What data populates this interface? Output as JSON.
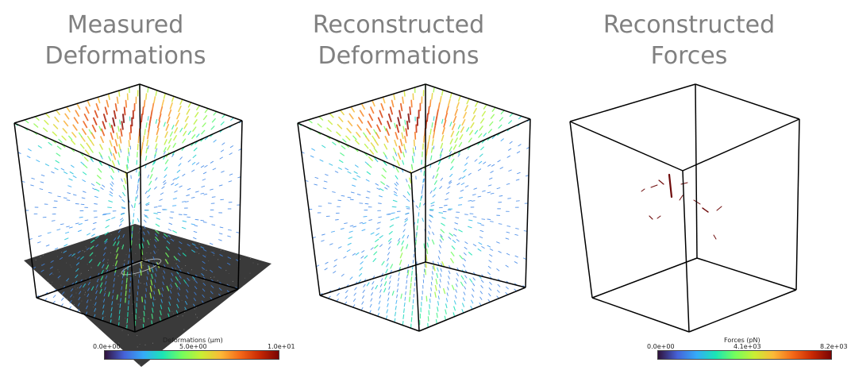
{
  "panels": [
    {
      "title_line1": "Measured",
      "title_line2": "Deformations",
      "kind": "deformation",
      "has_floor": true
    },
    {
      "title_line1": "Reconstructed",
      "title_line2": "Deformations",
      "kind": "deformation",
      "has_floor": false
    },
    {
      "title_line1": "Reconstructed",
      "title_line2": "Forces",
      "kind": "forces",
      "has_floor": false
    }
  ],
  "colorbars": [
    {
      "title": "Deformations (µm)",
      "min_label": "0.0e+00",
      "mid_label": "5.0e+00",
      "max_label": "1.0e+01"
    },
    {
      "title": "Forces (pN)",
      "min_label": "0.0e+00",
      "mid_label": "4.1e+03",
      "max_label": "8.2e+03"
    }
  ],
  "colors": {
    "title_gray": "#808080",
    "colormap": [
      "#30123b",
      "#4662d8",
      "#35abf8",
      "#1be5b5",
      "#74fe5d",
      "#c9ef34",
      "#fbb938",
      "#f56918",
      "#c92903",
      "#7a0403"
    ],
    "floor": "#3a3a3a",
    "force_arrow": "#6e0a0a"
  }
}
